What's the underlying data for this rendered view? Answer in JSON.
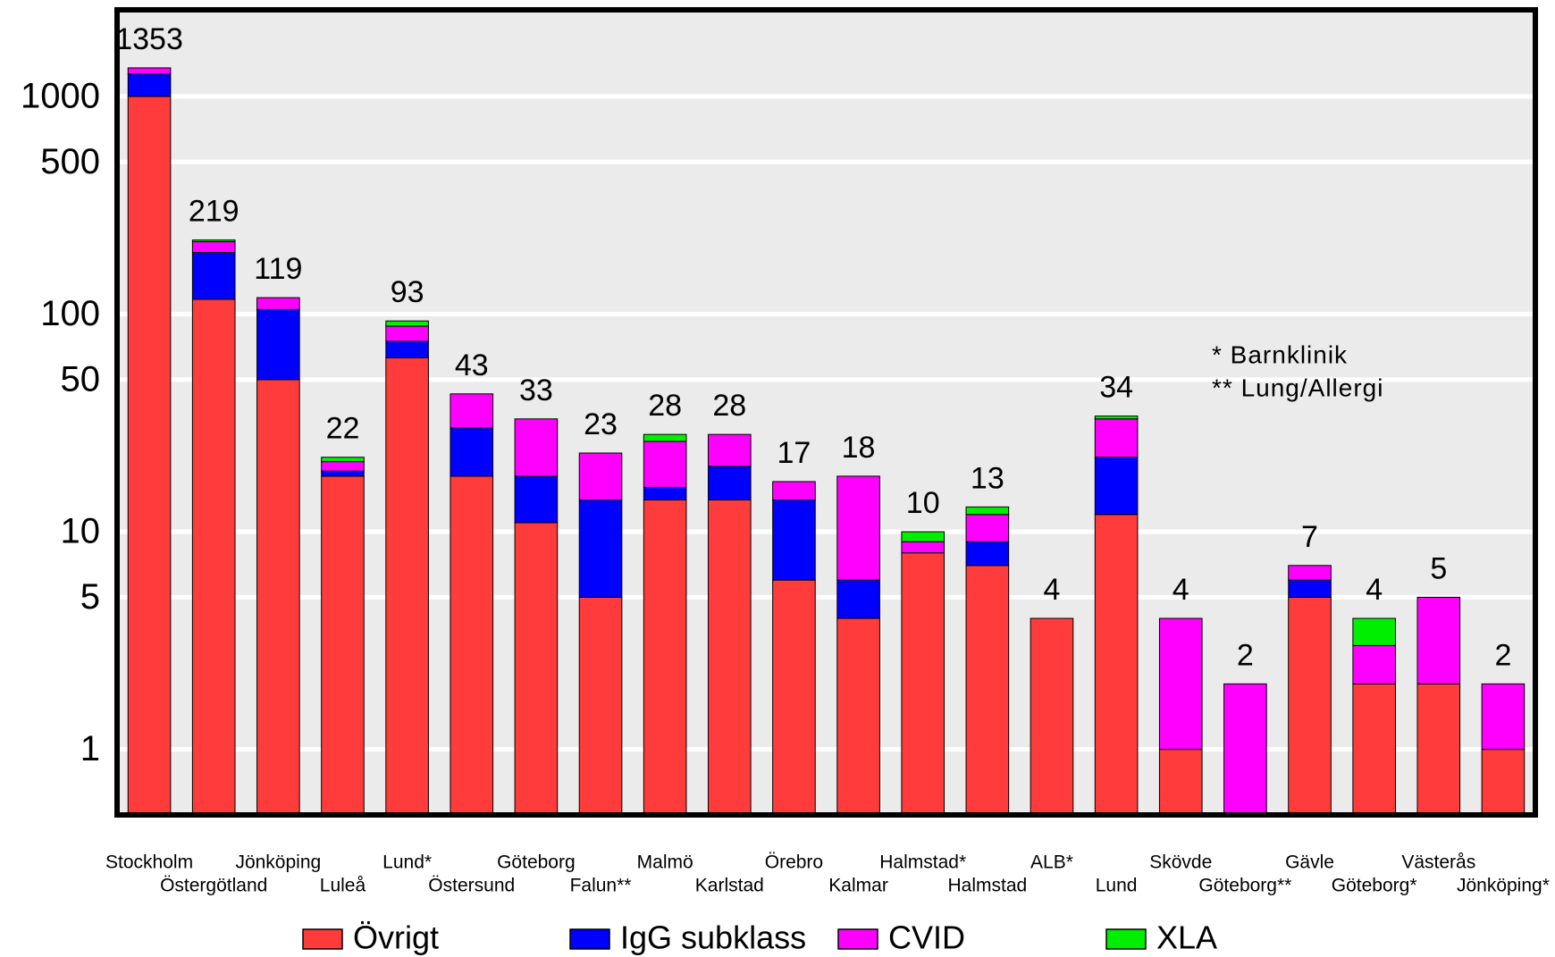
{
  "chart_data": {
    "type": "stacked_bar",
    "log_scale": true,
    "grid": true,
    "categories": [
      "Stockholm",
      "Östergötland",
      "Jönköping",
      "Luleå",
      "Lund*",
      "Östersund",
      "Göteborg",
      "Falun**",
      "Malmö",
      "Karlstad",
      "Örebro",
      "Kalmar",
      "Halmstad*",
      "Halmstad",
      "ALB*",
      "Lund",
      "Skövde",
      "Göteborg**",
      "Gävle",
      "Göteborg*",
      "Västerås",
      "Jönköping*"
    ],
    "series": [
      {
        "name": "Övrigt",
        "color": "#ff3b3b",
        "values": [
          1000,
          117,
          50,
          18,
          63,
          18,
          11,
          5,
          14,
          14,
          6,
          4,
          8,
          7,
          4,
          12,
          1,
          0,
          5,
          2,
          2,
          1
        ]
      },
      {
        "name": "IgG subklass",
        "color": "#0000ff",
        "values": [
          270,
          75,
          55,
          1,
          12,
          12,
          7,
          9,
          2,
          6,
          8,
          2,
          0,
          2,
          0,
          10,
          0,
          0,
          1,
          0,
          0,
          0
        ]
      },
      {
        "name": "CVID",
        "color": "#ff00ff",
        "values": [
          83,
          23,
          14,
          2,
          13,
          13,
          15,
          9,
          10,
          8,
          3,
          12,
          1,
          3,
          0,
          11,
          3,
          2,
          1,
          1,
          3,
          1
        ]
      },
      {
        "name": "XLA",
        "color": "#00ee00",
        "values": [
          0,
          4,
          0,
          1,
          5,
          0,
          0,
          0,
          2,
          0,
          0,
          0,
          1,
          1,
          0,
          1,
          0,
          0,
          0,
          1,
          0,
          0
        ]
      }
    ],
    "totals": [
      1353,
      219,
      119,
      22,
      93,
      43,
      33,
      23,
      28,
      28,
      17,
      18,
      10,
      13,
      4,
      34,
      4,
      2,
      7,
      4,
      5,
      2
    ],
    "ylim": [
      0.5,
      2500
    ],
    "yticks": [
      1,
      5,
      10,
      50,
      100,
      500,
      1000
    ],
    "annotations": [
      "*  Barnklinik",
      "** Lung/Allergi"
    ]
  }
}
